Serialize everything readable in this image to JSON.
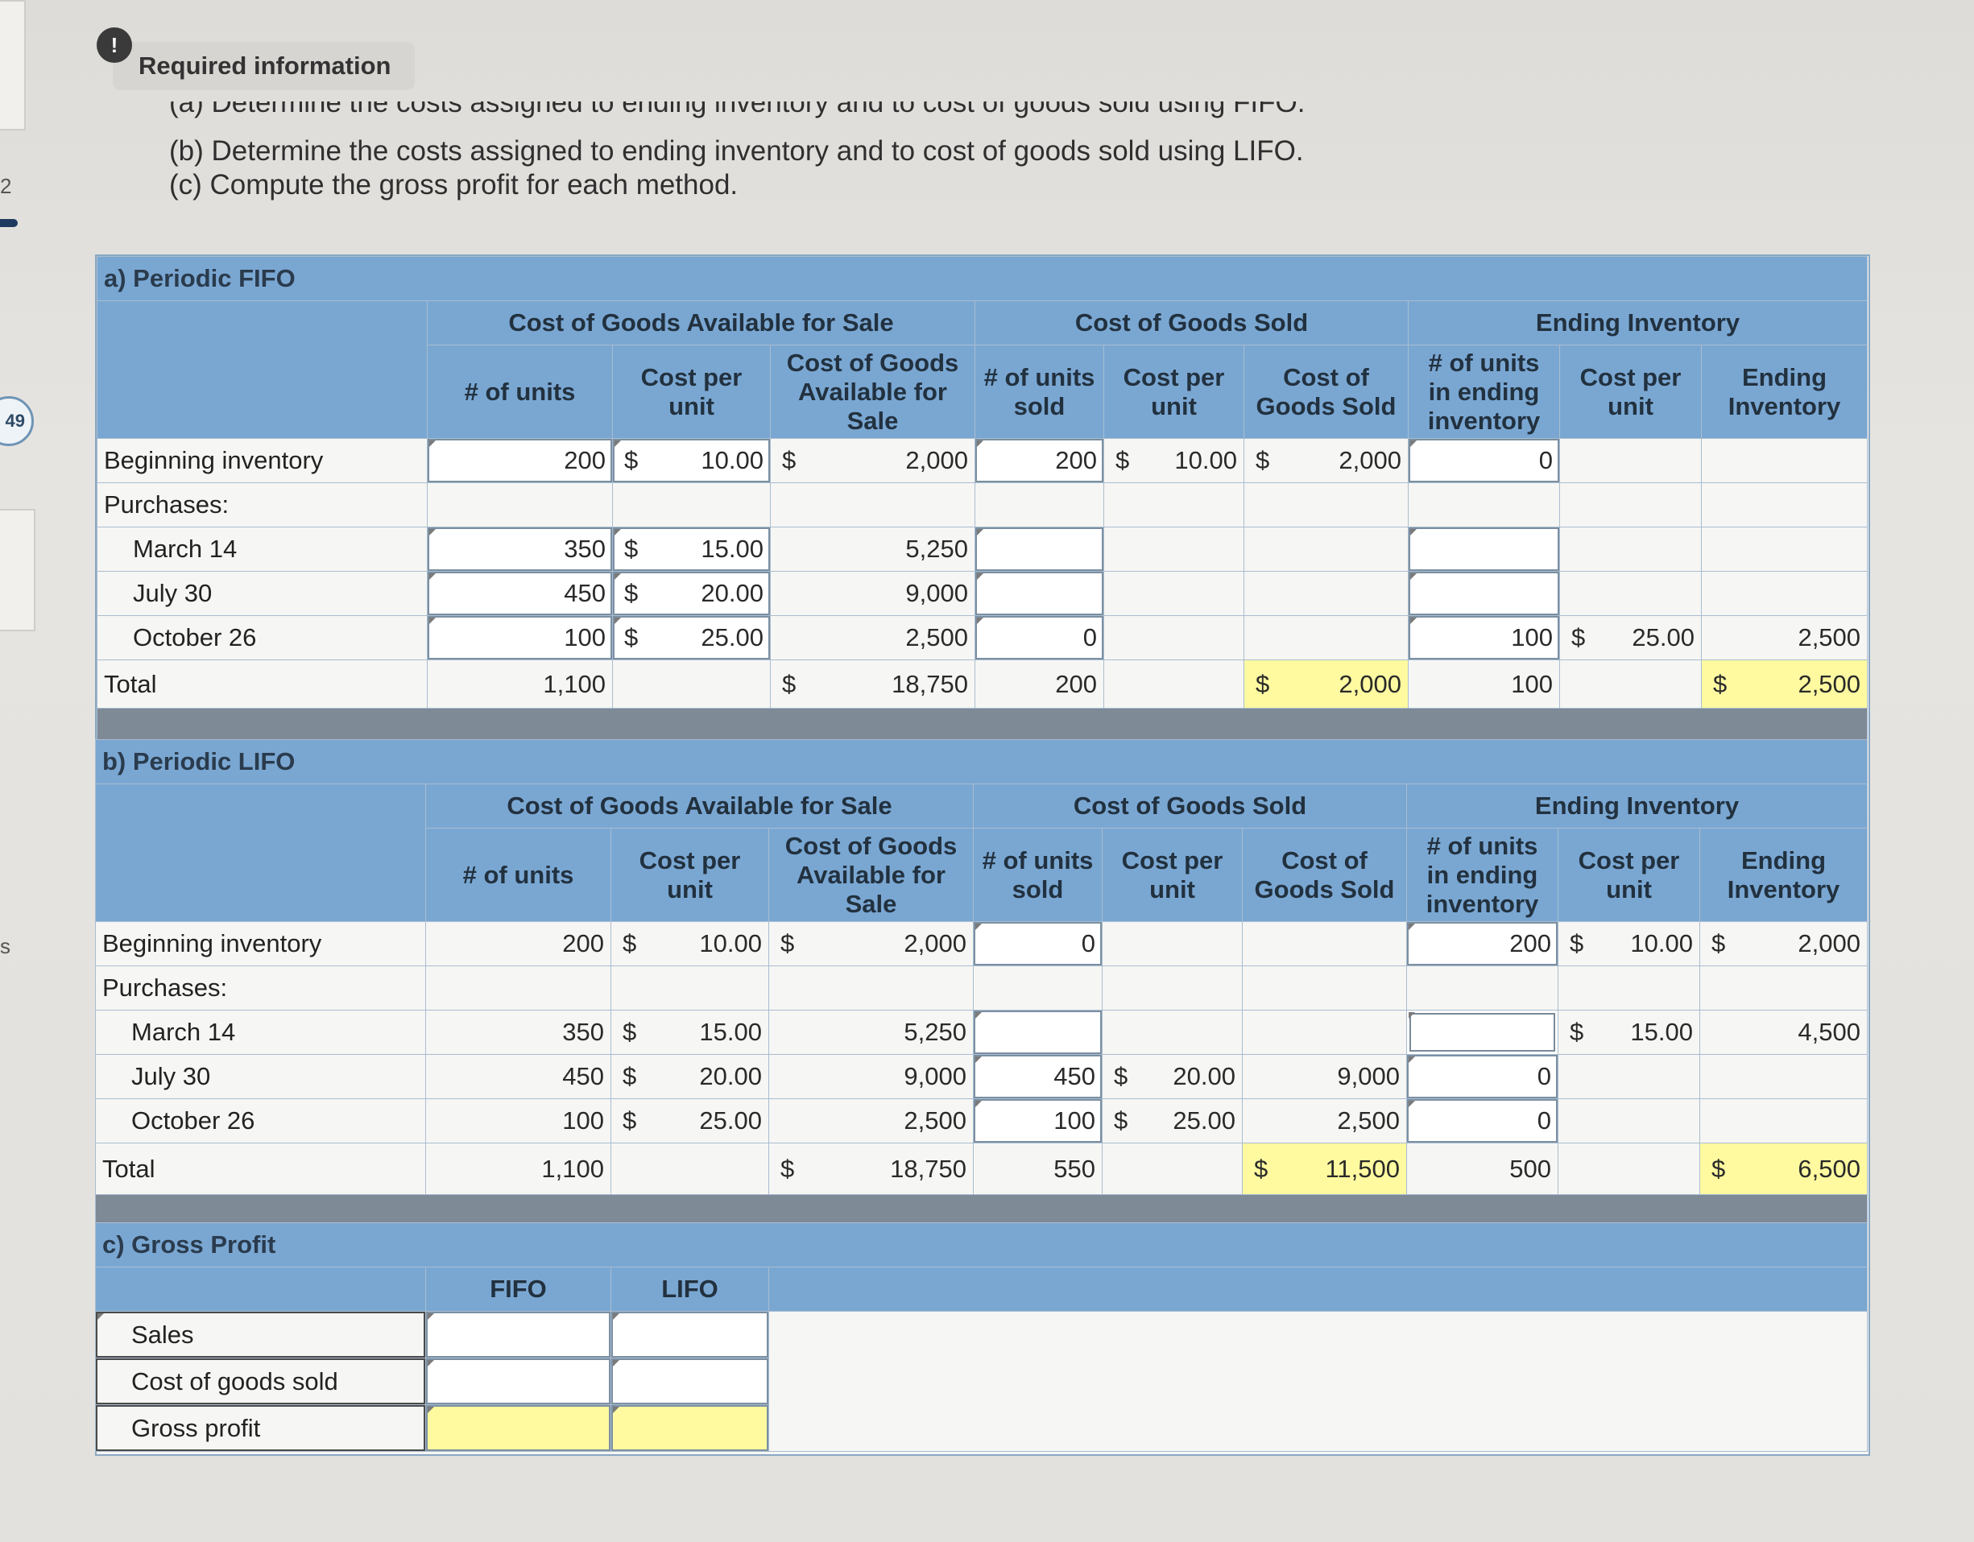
{
  "left_edge": {
    "frag_top": "2",
    "badge": "49",
    "frag_bottom": "s"
  },
  "header": {
    "icon": "info-icon",
    "title": "Required information"
  },
  "instructions": {
    "a": "(a) Determine the costs assigned to ending inventory and to cost of goods sold using FIFO.",
    "b": "(b) Determine the costs assigned to ending inventory and to cost of goods sold using LIFO.",
    "c": "(c) Compute the gross profit for each method."
  },
  "groups": {
    "cogas": "Cost of Goods Available for Sale",
    "cogs": "Cost of Goods Sold",
    "ei": "Ending Inventory"
  },
  "cols": {
    "units": "# of units",
    "cpu": "Cost per unit",
    "cogas": "Cost of Goods Available for Sale",
    "units_sold": "# of units sold",
    "cpu2": "Cost per unit",
    "cogs": "Cost of Goods Sold",
    "units_end": "# of units in ending inventory",
    "cpu3": "Cost per unit",
    "ei": "Ending Inventory"
  },
  "rows": {
    "beg": "Beginning inventory",
    "pur": "Purchases:",
    "m14": "March 14",
    "j30": "July 30",
    "o26": "October 26",
    "total": "Total"
  },
  "cur": "$",
  "fifo": {
    "title": "a) Periodic FIFO",
    "beg": {
      "u": "200",
      "c": "10.00",
      "a": "2,000",
      "us": "200",
      "cs": "10.00",
      "as": "2,000",
      "ue": "0"
    },
    "m14": {
      "u": "350",
      "c": "15.00",
      "a": "5,250"
    },
    "j30": {
      "u": "450",
      "c": "20.00",
      "a": "9,000"
    },
    "o26": {
      "u": "100",
      "c": "25.00",
      "a": "2,500",
      "us": "0",
      "ue": "100",
      "ce": "25.00",
      "ae": "2,500"
    },
    "total": {
      "u": "1,100",
      "a": "18,750",
      "us": "200",
      "as": "2,000",
      "ue": "100",
      "ae": "2,500"
    }
  },
  "lifo": {
    "title": "b) Periodic LIFO",
    "beg": {
      "u": "200",
      "c": "10.00",
      "a": "2,000",
      "us": "0",
      "ue": "200",
      "ce": "10.00",
      "ae": "2,000"
    },
    "m14": {
      "u": "350",
      "c": "15.00",
      "a": "5,250",
      "ce": "15.00",
      "ae": "4,500"
    },
    "j30": {
      "u": "450",
      "c": "20.00",
      "a": "9,000",
      "us": "450",
      "cs": "20.00",
      "as": "9,000",
      "ue": "0"
    },
    "o26": {
      "u": "100",
      "c": "25.00",
      "a": "2,500",
      "us": "100",
      "cs": "25.00",
      "as": "2,500",
      "ue": "0"
    },
    "total": {
      "u": "1,100",
      "a": "18,750",
      "us": "550",
      "as": "11,500",
      "ue": "500",
      "ae": "6,500"
    }
  },
  "gross": {
    "title": "c) Gross Profit",
    "fifo": "FIFO",
    "lifo": "LIFO",
    "sales": "Sales",
    "cogs": "Cost of goods sold",
    "gp": "Gross profit"
  }
}
